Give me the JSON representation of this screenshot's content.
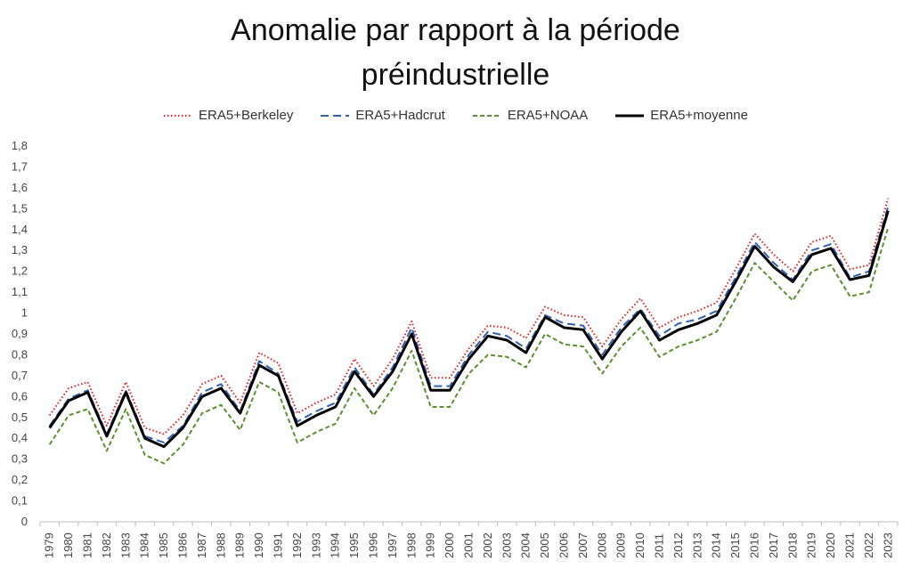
{
  "chart_data": {
    "type": "line",
    "title_line1": "Anomalie par rapport à la période",
    "title_line2": "préindustrielle",
    "xlabel": "",
    "ylabel": "",
    "ylim": [
      0,
      1.8
    ],
    "yticks": [
      0,
      0.1,
      0.2,
      0.3,
      0.4,
      0.5,
      0.6,
      0.7,
      0.8,
      0.9,
      1,
      1.1,
      1.2,
      1.3,
      1.4,
      1.5,
      1.6,
      1.7,
      1.8
    ],
    "ytick_labels": [
      "0",
      "0,1",
      "0,2",
      "0,3",
      "0,4",
      "0,5",
      "0,6",
      "0,7",
      "0,8",
      "0,9",
      "1",
      "1,1",
      "1,2",
      "1,3",
      "1,4",
      "1,5",
      "1,6",
      "1,7",
      "1,8"
    ],
    "categories": [
      "1979",
      "1980",
      "1981",
      "1982",
      "1983",
      "1984",
      "1985",
      "1986",
      "1987",
      "1988",
      "1989",
      "1990",
      "1991",
      "1992",
      "1993",
      "1994",
      "1995",
      "1996",
      "1997",
      "1998",
      "1999",
      "2000",
      "2001",
      "2002",
      "2003",
      "2004",
      "2005",
      "2006",
      "2007",
      "2008",
      "2009",
      "2010",
      "2011",
      "2012",
      "2013",
      "2014",
      "2015",
      "2016",
      "2017",
      "2018",
      "2019",
      "2020",
      "2021",
      "2022",
      "2023"
    ],
    "legend_position": "top",
    "series": [
      {
        "name": "ERA5+Berkeley",
        "color": "#e02020",
        "style": "dotted",
        "values": [
          0.51,
          0.64,
          0.67,
          0.46,
          0.67,
          0.45,
          0.42,
          0.51,
          0.66,
          0.7,
          0.57,
          0.81,
          0.76,
          0.52,
          0.57,
          0.61,
          0.78,
          0.65,
          0.78,
          0.96,
          0.69,
          0.69,
          0.83,
          0.94,
          0.93,
          0.88,
          1.03,
          0.99,
          0.98,
          0.84,
          0.97,
          1.07,
          0.93,
          0.98,
          1.01,
          1.05,
          1.21,
          1.38,
          1.28,
          1.2,
          1.34,
          1.37,
          1.21,
          1.23,
          1.55
        ]
      },
      {
        "name": "ERA5+Hadcrut",
        "color": "#3060b0",
        "style": "dashed",
        "values": [
          0.46,
          0.59,
          0.63,
          0.42,
          0.63,
          0.41,
          0.38,
          0.46,
          0.62,
          0.66,
          0.53,
          0.77,
          0.71,
          0.48,
          0.53,
          0.57,
          0.74,
          0.61,
          0.74,
          0.93,
          0.65,
          0.65,
          0.8,
          0.91,
          0.89,
          0.83,
          0.99,
          0.95,
          0.94,
          0.8,
          0.93,
          1.02,
          0.89,
          0.95,
          0.97,
          1.01,
          1.17,
          1.34,
          1.24,
          1.16,
          1.3,
          1.33,
          1.17,
          1.2,
          1.51
        ]
      },
      {
        "name": "ERA5+NOAA",
        "color": "#5a9030",
        "style": "dashed",
        "values": [
          0.37,
          0.51,
          0.54,
          0.34,
          0.54,
          0.32,
          0.28,
          0.37,
          0.52,
          0.56,
          0.44,
          0.67,
          0.62,
          0.38,
          0.43,
          0.47,
          0.64,
          0.51,
          0.64,
          0.82,
          0.55,
          0.55,
          0.71,
          0.8,
          0.79,
          0.74,
          0.9,
          0.85,
          0.84,
          0.71,
          0.84,
          0.93,
          0.79,
          0.84,
          0.87,
          0.91,
          1.07,
          1.24,
          1.15,
          1.06,
          1.2,
          1.23,
          1.08,
          1.1,
          1.41
        ]
      },
      {
        "name": "ERA5+moyenne",
        "color": "#000000",
        "style": "solid",
        "values": [
          0.45,
          0.58,
          0.62,
          0.41,
          0.62,
          0.4,
          0.36,
          0.45,
          0.6,
          0.64,
          0.52,
          0.75,
          0.7,
          0.46,
          0.51,
          0.55,
          0.72,
          0.6,
          0.72,
          0.9,
          0.63,
          0.63,
          0.78,
          0.89,
          0.87,
          0.81,
          0.98,
          0.93,
          0.92,
          0.78,
          0.91,
          1.01,
          0.87,
          0.92,
          0.95,
          0.99,
          1.15,
          1.32,
          1.22,
          1.15,
          1.28,
          1.31,
          1.16,
          1.18,
          1.49
        ]
      }
    ]
  }
}
